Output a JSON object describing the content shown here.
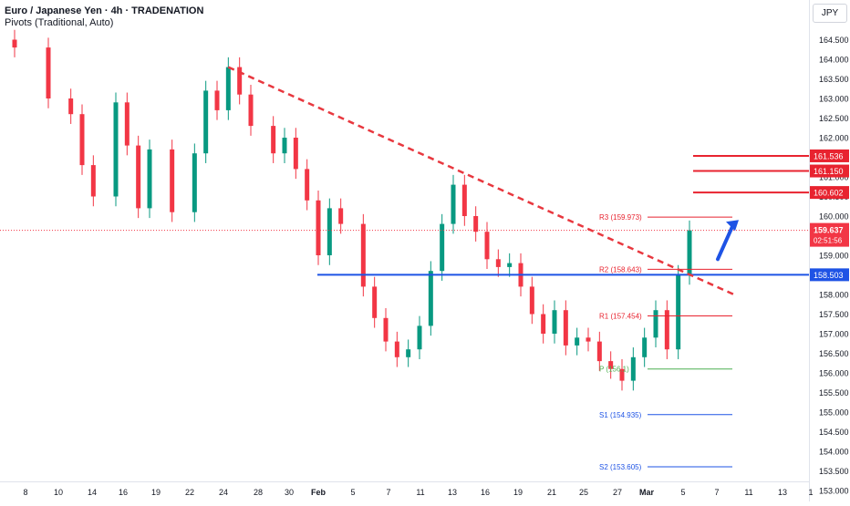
{
  "header": {
    "title": "Euro / Japanese Yen · 4h · TRADENATION",
    "indicator": "Pivots (Traditional, Auto)",
    "currency": "JPY"
  },
  "colors": {
    "up": "#089981",
    "down": "#f23645",
    "support": "#1e53e5",
    "resistance": "#e8232f",
    "trend": "#e8383f",
    "pivot": "#4caf50",
    "last_price": "#f23645"
  },
  "chart_data": {
    "type": "candlestick",
    "symbol": "EURJPY",
    "timeframe": "4h",
    "ylim": [
      153.0,
      165.0
    ],
    "y_ticks": [
      "153.000",
      "153.500",
      "154.000",
      "154.500",
      "155.000",
      "155.500",
      "156.000",
      "156.500",
      "157.000",
      "157.500",
      "158.000",
      "158.500",
      "159.000",
      "159.500",
      "160.000",
      "160.500",
      "161.000",
      "161.500",
      "162.000",
      "162.500",
      "163.000",
      "163.500",
      "164.000",
      "164.500"
    ],
    "x_ticks": [
      "8",
      "10",
      "14",
      "16",
      "19",
      "22",
      "24",
      "28",
      "30",
      "Feb",
      "5",
      "7",
      "11",
      "13",
      "16",
      "19",
      "21",
      "25",
      "27",
      "Mar",
      "5",
      "7",
      "11",
      "13",
      "1"
    ],
    "trend_series": [
      {
        "date": "Jan 5",
        "close": 164.3
      },
      {
        "date": "Jan 8",
        "close": 163.0
      },
      {
        "date": "Jan 10",
        "close": 162.6
      },
      {
        "date": "Jan 11",
        "close": 161.3
      },
      {
        "date": "Jan 12",
        "close": 160.5
      },
      {
        "date": "Jan 14",
        "close": 162.9
      },
      {
        "date": "Jan 15",
        "close": 161.8
      },
      {
        "date": "Jan 16",
        "close": 160.2
      },
      {
        "date": "Jan 17",
        "close": 161.7
      },
      {
        "date": "Jan 19",
        "close": 160.1
      },
      {
        "date": "Jan 21",
        "close": 161.6
      },
      {
        "date": "Jan 22",
        "close": 163.2
      },
      {
        "date": "Jan 23",
        "close": 162.7
      },
      {
        "date": "Jan 24",
        "close": 163.8
      },
      {
        "date": "Jan 25",
        "close": 163.1
      },
      {
        "date": "Jan 26",
        "close": 162.3
      },
      {
        "date": "Jan 28",
        "close": 161.6
      },
      {
        "date": "Jan 29",
        "close": 162.0
      },
      {
        "date": "Jan 30",
        "close": 161.2
      },
      {
        "date": "Jan 31",
        "close": 160.4
      },
      {
        "date": "Feb 1",
        "close": 159.0
      },
      {
        "date": "Feb 2",
        "close": 160.2
      },
      {
        "date": "Feb 3",
        "close": 159.8
      },
      {
        "date": "Feb 5",
        "close": 158.2
      },
      {
        "date": "Feb 6",
        "close": 157.4
      },
      {
        "date": "Feb 7",
        "close": 156.8
      },
      {
        "date": "Feb 8",
        "close": 156.4
      },
      {
        "date": "Feb 9",
        "close": 156.6
      },
      {
        "date": "Feb 10",
        "close": 157.2
      },
      {
        "date": "Feb 11",
        "close": 158.6
      },
      {
        "date": "Feb 12",
        "close": 159.8
      },
      {
        "date": "Feb 13",
        "close": 160.8
      },
      {
        "date": "Feb 14",
        "close": 160.0
      },
      {
        "date": "Feb 15",
        "close": 159.6
      },
      {
        "date": "Feb 16",
        "close": 158.9
      },
      {
        "date": "Feb 17",
        "close": 158.7
      },
      {
        "date": "Feb 18",
        "close": 158.8
      },
      {
        "date": "Feb 19",
        "close": 158.2
      },
      {
        "date": "Feb 20",
        "close": 157.5
      },
      {
        "date": "Feb 21",
        "close": 157.0
      },
      {
        "date": "Feb 22",
        "close": 157.6
      },
      {
        "date": "Feb 23",
        "close": 156.7
      },
      {
        "date": "Feb 24",
        "close": 156.9
      },
      {
        "date": "Feb 25",
        "close": 156.8
      },
      {
        "date": "Feb 26",
        "close": 156.3
      },
      {
        "date": "Feb 27",
        "close": 156.1
      },
      {
        "date": "Feb 28",
        "close": 155.8
      },
      {
        "date": "Feb 29",
        "close": 156.4
      },
      {
        "date": "Mar 1",
        "close": 156.9
      },
      {
        "date": "Mar 2",
        "close": 157.6
      },
      {
        "date": "Mar 3",
        "close": 156.6
      },
      {
        "date": "Mar 4",
        "close": 158.5
      },
      {
        "date": "Mar 5",
        "close": 159.637
      }
    ],
    "pivots": [
      {
        "label": "R3 (159.973)",
        "value": 159.973,
        "kind": "resistance"
      },
      {
        "label": "R2 (158.643)",
        "value": 158.643,
        "kind": "resistance"
      },
      {
        "label": "R1 (157.454)",
        "value": 157.454,
        "kind": "resistance"
      },
      {
        "label": "P (156.1)",
        "value": 156.1,
        "kind": "pivot"
      },
      {
        "label": "S1 (154.935)",
        "value": 154.935,
        "kind": "support"
      },
      {
        "label": "S2 (153.605)",
        "value": 153.605,
        "kind": "support"
      }
    ],
    "resistance_levels": [
      "161.536",
      "161.150",
      "160.602"
    ],
    "support_level": "158.503",
    "last_price": "159.637",
    "countdown": "02:51:56",
    "trendline": {
      "from": {
        "date": "Jan 24",
        "price": 163.8
      },
      "to": {
        "date": "Mar 7",
        "price": 158.0
      }
    }
  }
}
